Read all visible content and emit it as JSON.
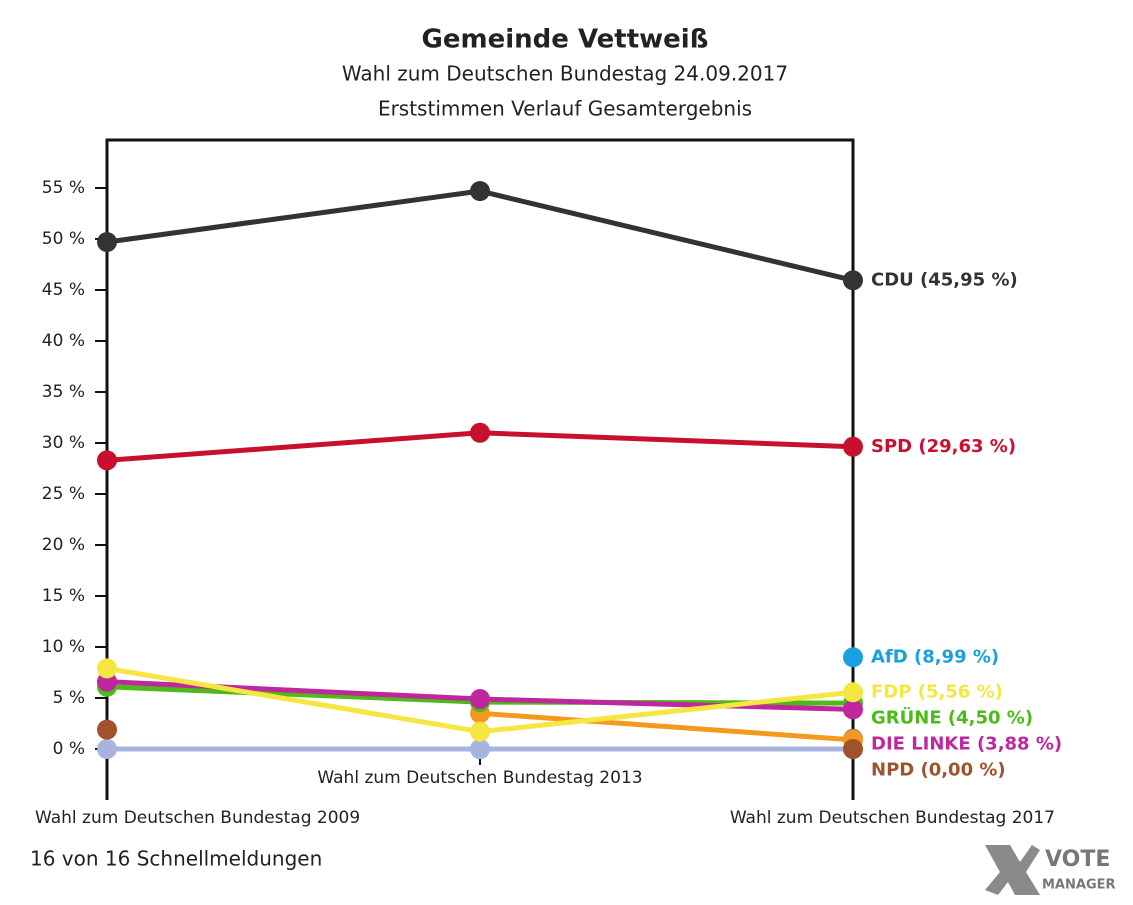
{
  "chart_data": {
    "type": "line",
    "title": "Gemeinde Vettweiß",
    "subtitle": [
      "Wahl zum Deutschen Bundestag 24.09.2017",
      "Erststimmen Verlauf Gesamtergebnis"
    ],
    "categories": [
      "Wahl zum Deutschen Bundestag 2009",
      "Wahl zum Deutschen Bundestag 2013",
      "Wahl zum Deutschen Bundestag 2017"
    ],
    "ylim": [
      0,
      60
    ],
    "yticks": [
      {
        "value": 0,
        "label": "0 %"
      },
      {
        "value": 5,
        "label": "5 %"
      },
      {
        "value": 10,
        "label": "10 %"
      },
      {
        "value": 15,
        "label": "15 %"
      },
      {
        "value": 20,
        "label": "20 %"
      },
      {
        "value": 25,
        "label": "25 %"
      },
      {
        "value": 30,
        "label": "30 %"
      },
      {
        "value": 35,
        "label": "35 %"
      },
      {
        "value": 40,
        "label": "40 %"
      },
      {
        "value": 45,
        "label": "45 %"
      },
      {
        "value": 50,
        "label": "50 %"
      },
      {
        "value": 55,
        "label": "55 %"
      }
    ],
    "series": [
      {
        "color": "#a8b4e0",
        "values": [
          0,
          0,
          0
        ]
      },
      {
        "color": "#808080",
        "values": [
          null,
          null,
          1.0
        ]
      },
      {
        "color": "#f39a1e",
        "values": [
          null,
          3.5,
          0.9
        ]
      },
      {
        "name": "CDU",
        "label": "CDU (45,95 %)",
        "color": "#333333",
        "values": [
          49.7,
          54.7,
          45.95
        ]
      },
      {
        "name": "SPD",
        "label": "SPD (29,63 %)",
        "color": "#c8102e",
        "values": [
          28.3,
          31.0,
          29.63
        ]
      },
      {
        "name": "AfD",
        "label": "AfD (8,99 %)",
        "color": "#1a9fe0",
        "values": [
          null,
          null,
          8.99
        ]
      },
      {
        "name": "GRÜNE",
        "label": "GRÜNE (4,50 %)",
        "color": "#4cbb17",
        "values": [
          6.1,
          4.6,
          4.5
        ]
      },
      {
        "name": "DIE LINKE",
        "label": "DIE LINKE (3,88 %)",
        "color": "#c0269e",
        "values": [
          6.6,
          4.9,
          3.88
        ]
      },
      {
        "name": "FDP",
        "label": "FDP (5,56 %)",
        "color": "#f5e642",
        "values": [
          7.9,
          1.7,
          5.56
        ]
      },
      {
        "name": "NPD",
        "label": "NPD (0,00 %)",
        "color": "#a0522d",
        "values": [
          1.9,
          null,
          0.0
        ]
      }
    ],
    "footer": "16 von 16 Schnellmeldungen",
    "logo": [
      "VOTE",
      "MANAGER"
    ]
  }
}
